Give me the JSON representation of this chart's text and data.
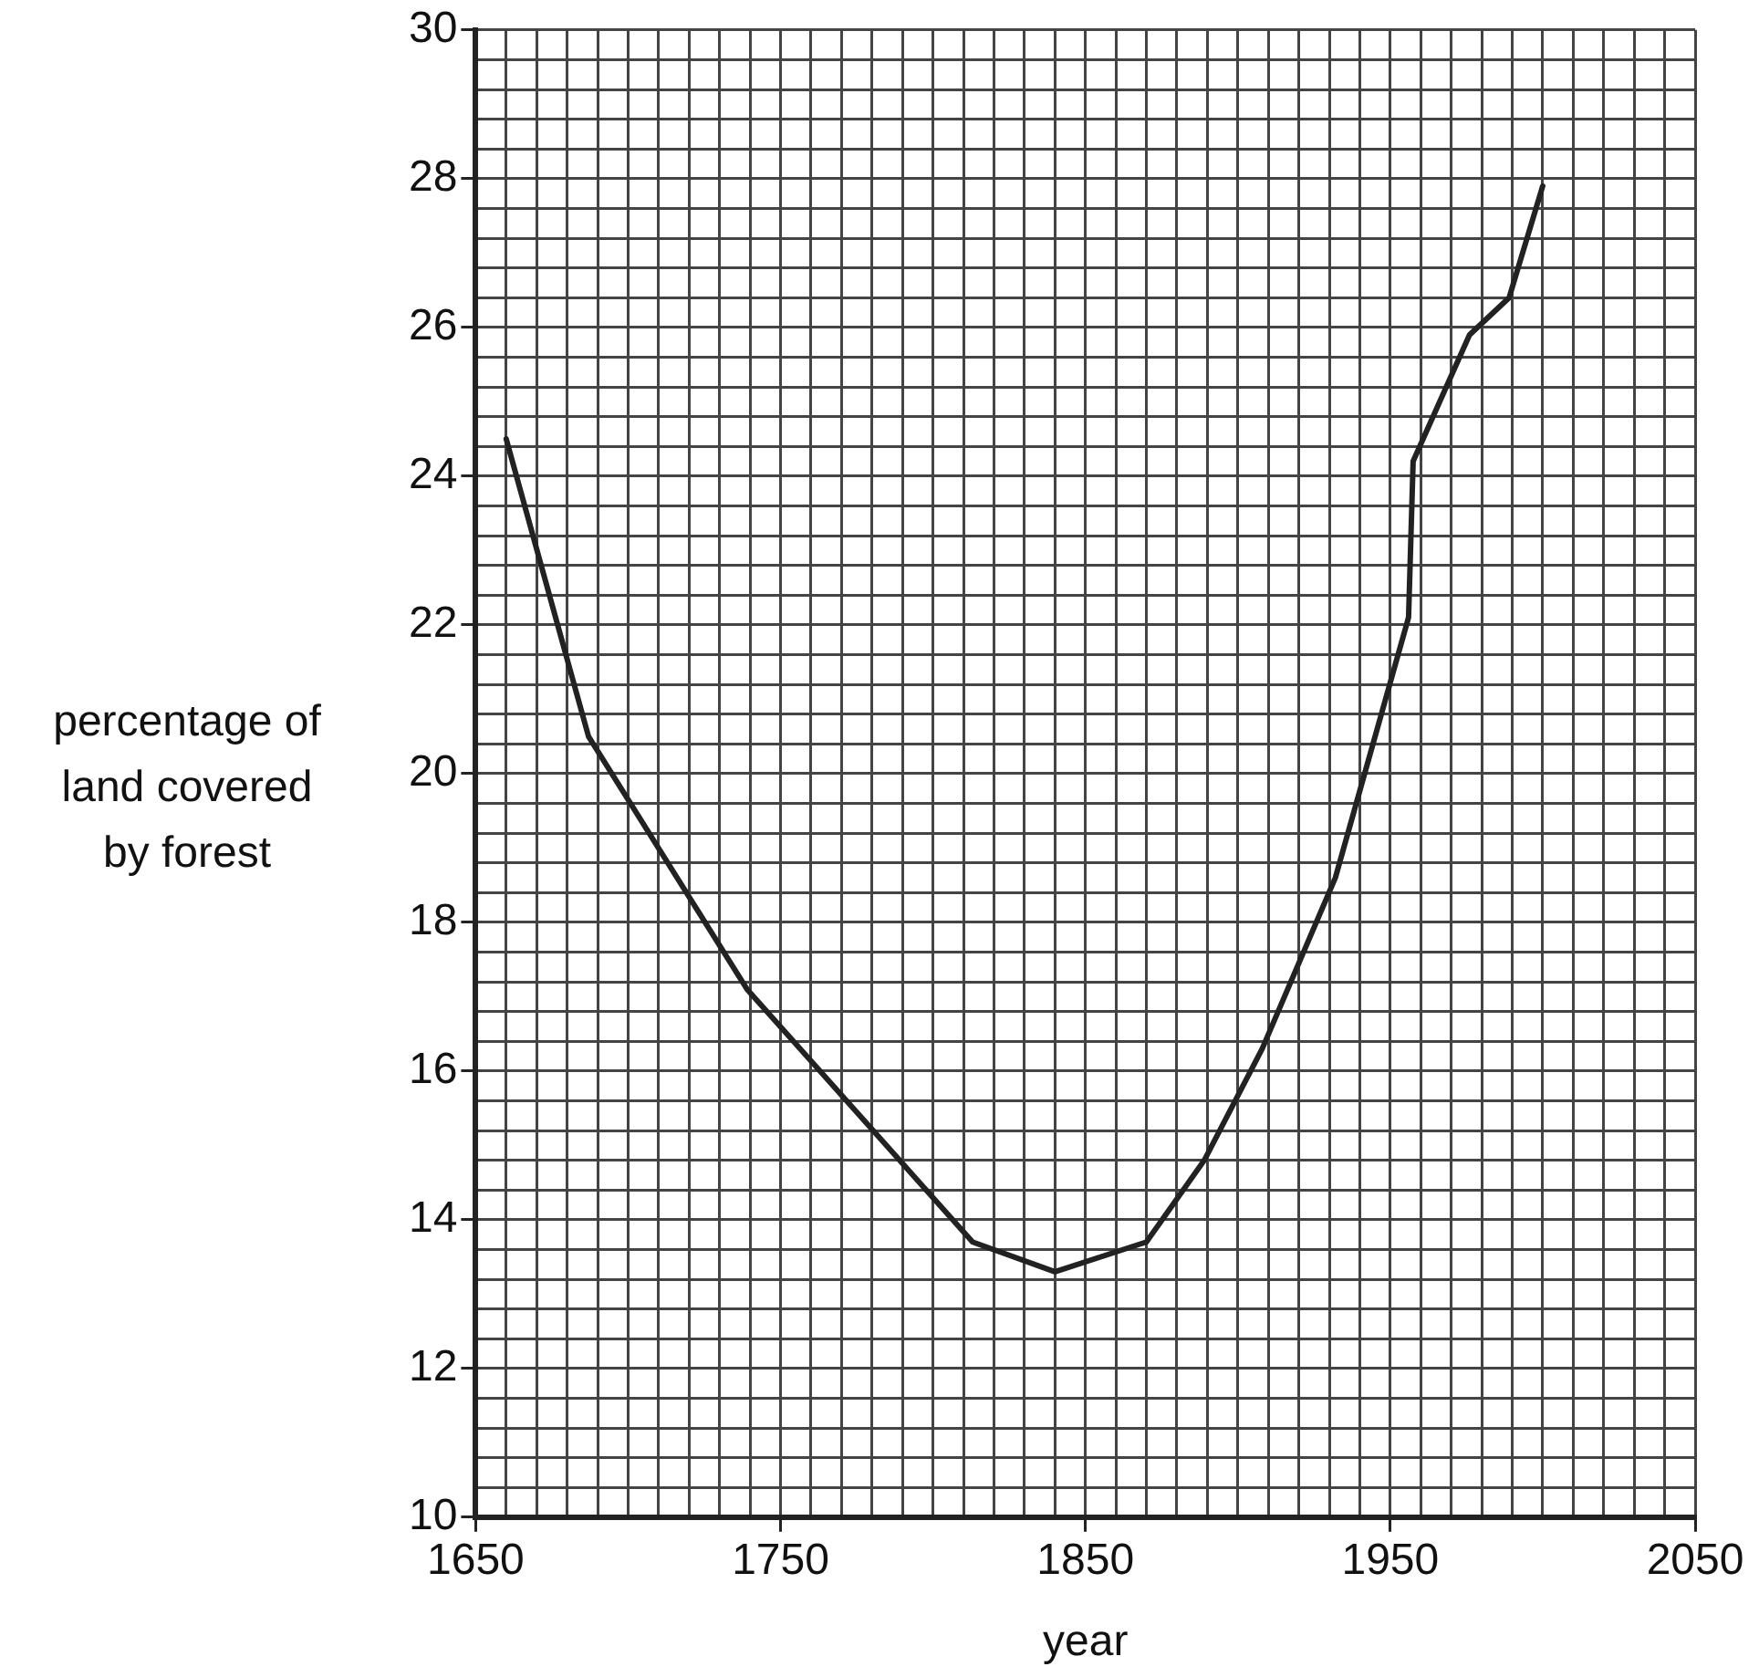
{
  "chart_data": {
    "type": "line",
    "xlabel": "year",
    "ylabel": "percentage of land covered by forest",
    "x": [
      1660,
      1687,
      1739,
      1813,
      1840,
      1870,
      1889,
      1908,
      1932,
      1956,
      1957.5,
      1976,
      1989,
      2000
    ],
    "series": [
      {
        "color": "#222222",
        "values": [
          24.5,
          20.5,
          17.1,
          13.7,
          13.3,
          13.7,
          14.8,
          16.3,
          18.6,
          22.1,
          24.2,
          25.9,
          26.4,
          27.9
        ]
      }
    ],
    "marker": "none",
    "line_style": "solid",
    "grid": true,
    "legend": false,
    "xlim": [
      1650,
      2050
    ],
    "ylim": [
      10,
      30
    ],
    "xticks": [
      1650,
      {
        "value": 1660,
        "label": null
      },
      {
        "value": 1670,
        "label": null
      },
      {
        "value": 1680,
        "label": null
      },
      {
        "value": 1690,
        "label": null
      },
      {
        "value": 1700,
        "label": null
      },
      {
        "value": 1710,
        "label": null
      },
      {
        "value": 1720,
        "label": null
      },
      {
        "value": 1730,
        "label": null
      },
      {
        "value": 1740,
        "label": null
      },
      1750,
      {
        "value": 1760,
        "label": null
      },
      {
        "value": 1770,
        "label": null
      },
      {
        "value": 1780,
        "label": null
      },
      {
        "value": 1790,
        "label": null
      },
      {
        "value": 1800,
        "label": null
      },
      {
        "value": 1810,
        "label": null
      },
      {
        "value": 1820,
        "label": null
      },
      {
        "value": 1830,
        "label": null
      },
      {
        "value": 1840,
        "label": null
      },
      1850,
      {
        "value": 1860,
        "label": null
      },
      {
        "value": 1870,
        "label": null
      },
      {
        "value": 1880,
        "label": null
      },
      {
        "value": 1890,
        "label": null
      },
      {
        "value": 1900,
        "label": null
      },
      {
        "value": 1910,
        "label": null
      },
      {
        "value": 1920,
        "label": null
      },
      {
        "value": 1930,
        "label": null
      },
      {
        "value": 1940,
        "label": null
      },
      1950,
      {
        "value": 1960,
        "label": null
      },
      {
        "value": 1970,
        "label": null
      },
      {
        "value": 1980,
        "label": null
      },
      {
        "value": 1990,
        "label": null
      },
      {
        "value": 2000,
        "label": null
      },
      {
        "value": 2010,
        "label": null
      },
      {
        "value": 2020,
        "label": null
      },
      {
        "value": 2030,
        "label": null
      },
      {
        "value": 2040,
        "label": null
      },
      2050
    ],
    "yticks": [
      10,
      {
        "value": 10.4,
        "label": null
      },
      {
        "value": 10.8,
        "label": null
      },
      {
        "value": 11.2,
        "label": null
      },
      {
        "value": 11.6,
        "label": null
      },
      12,
      {
        "value": 12.4,
        "label": null
      },
      {
        "value": 12.8,
        "label": null
      },
      {
        "value": 13.2,
        "label": null
      },
      {
        "value": 13.6,
        "label": null
      },
      14,
      {
        "value": 14.4,
        "label": null
      },
      {
        "value": 14.8,
        "label": null
      },
      {
        "value": 15.2,
        "label": null
      },
      {
        "value": 15.6,
        "label": null
      },
      16,
      {
        "value": 16.4,
        "label": null
      },
      {
        "value": 16.8,
        "label": null
      },
      {
        "value": 17.2,
        "label": null
      },
      {
        "value": 17.6,
        "label": null
      },
      18,
      {
        "value": 18.4,
        "label": null
      },
      {
        "value": 18.8,
        "label": null
      },
      {
        "value": 19.2,
        "label": null
      },
      {
        "value": 19.6,
        "label": null
      },
      20,
      {
        "value": 20.4,
        "label": null
      },
      {
        "value": 20.8,
        "label": null
      },
      {
        "value": 21.2,
        "label": null
      },
      {
        "value": 21.6,
        "label": null
      },
      22,
      {
        "value": 22.4,
        "label": null
      },
      {
        "value": 22.8,
        "label": null
      },
      {
        "value": 23.2,
        "label": null
      },
      {
        "value": 23.6,
        "label": null
      },
      24,
      {
        "value": 24.4,
        "label": null
      },
      {
        "value": 24.8,
        "label": null
      },
      {
        "value": 25.2,
        "label": null
      },
      {
        "value": 25.6,
        "label": null
      },
      26,
      {
        "value": 26.4,
        "label": null
      },
      {
        "value": 26.8,
        "label": null
      },
      {
        "value": 27.2,
        "label": null
      },
      {
        "value": 27.6,
        "label": null
      },
      28,
      {
        "value": 28.4,
        "label": null
      },
      {
        "value": 28.8,
        "label": null
      },
      {
        "value": 29.2,
        "label": null
      },
      {
        "value": 29.6,
        "label": null
      },
      30
    ]
  }
}
